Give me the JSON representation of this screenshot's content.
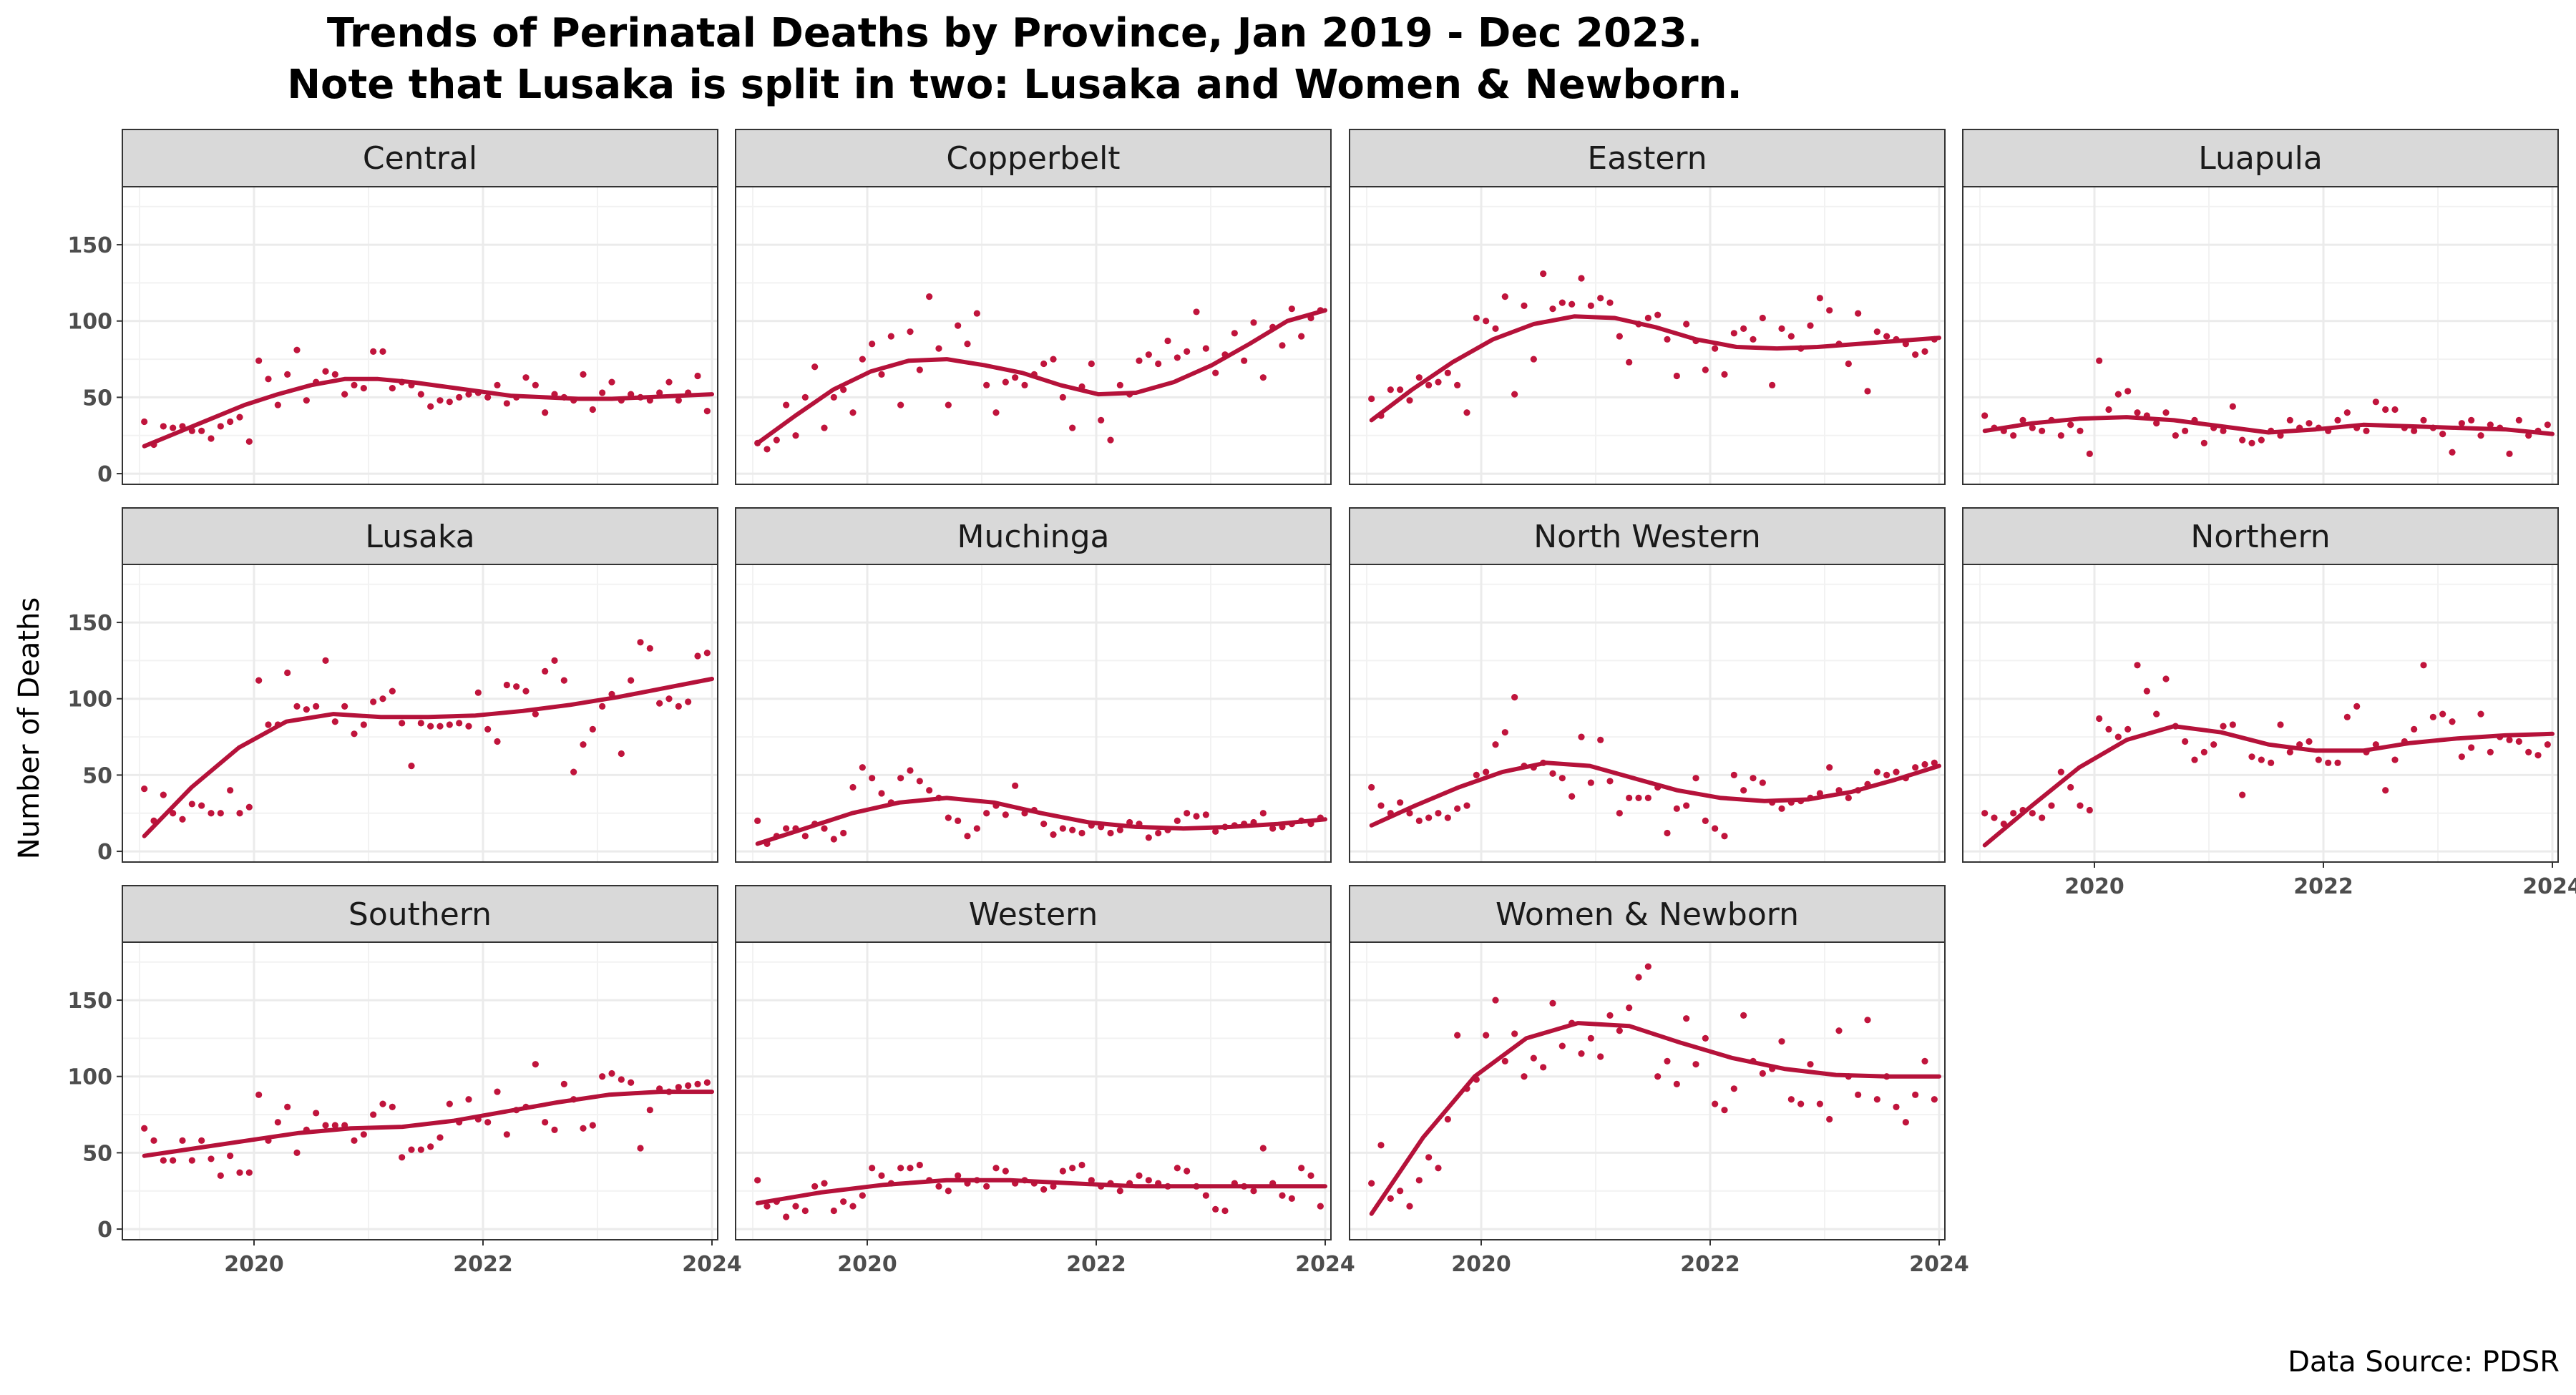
{
  "chart_data": {
    "type": "scatter",
    "title": "Trends of Perinatal Deaths by Province, Jan 2019 - Dec 2023.",
    "subtitle": "Note that Lusaka is split in two: Lusaka and Women & Newborn.",
    "ylabel": "Number of Deaths",
    "xlabel": "",
    "caption": "Data Source: PDSR",
    "xlim": [
      2018.85,
      2024.05
    ],
    "ylim": [
      -7,
      188
    ],
    "xticks": [
      2020,
      2022,
      2024
    ],
    "yticks": [
      0,
      50,
      100,
      150
    ],
    "grid": true,
    "colors": {
      "points": "#c0143c",
      "line": "#b5123a",
      "strip": "#d9d9d9",
      "grid": "#ebebeb"
    },
    "panels": [
      {
        "name": "Central",
        "values": [
          34,
          19,
          31,
          30,
          31,
          28,
          28,
          23,
          31,
          34,
          37,
          21,
          74,
          62,
          45,
          65,
          81,
          48,
          60,
          67,
          65,
          52,
          58,
          56,
          80,
          80,
          56,
          60,
          58,
          52,
          44,
          48,
          47,
          50,
          52,
          53,
          50,
          58,
          46,
          50,
          63,
          58,
          40,
          52,
          50,
          48,
          65,
          42,
          53,
          60,
          48,
          52,
          50,
          48,
          53,
          60,
          48,
          53,
          64,
          41
        ],
        "trend": [
          18,
          27,
          36,
          45,
          52,
          58,
          62,
          62,
          60,
          57,
          54,
          51,
          50,
          49,
          49,
          50,
          51,
          52
        ]
      },
      {
        "name": "Copperbelt",
        "values": [
          20,
          16,
          22,
          45,
          25,
          50,
          70,
          30,
          50,
          55,
          40,
          75,
          85,
          65,
          90,
          45,
          93,
          68,
          116,
          82,
          45,
          97,
          85,
          105,
          58,
          40,
          60,
          63,
          58,
          65,
          72,
          75,
          50,
          30,
          57,
          72,
          35,
          22,
          58,
          52,
          74,
          78,
          72,
          87,
          76,
          80,
          106,
          82,
          66,
          78,
          92,
          74,
          99,
          63,
          96,
          84,
          108,
          90,
          102,
          107
        ],
        "trend": [
          20,
          38,
          55,
          67,
          74,
          75,
          71,
          66,
          58,
          52,
          53,
          60,
          71,
          85,
          100,
          107
        ]
      },
      {
        "name": "Eastern",
        "values": [
          49,
          38,
          55,
          55,
          48,
          63,
          58,
          60,
          66,
          58,
          40,
          102,
          100,
          95,
          116,
          52,
          110,
          75,
          131,
          108,
          112,
          111,
          128,
          110,
          115,
          112,
          90,
          73,
          98,
          102,
          104,
          88,
          64,
          98,
          87,
          68,
          82,
          65,
          92,
          95,
          88,
          102,
          58,
          95,
          90,
          82,
          97,
          115,
          107,
          85,
          72,
          105,
          54,
          93,
          90,
          88,
          85,
          78,
          80,
          88
        ],
        "trend": [
          35,
          55,
          73,
          88,
          98,
          103,
          102,
          96,
          88,
          83,
          82,
          83,
          85,
          87,
          89
        ]
      },
      {
        "name": "Luapula",
        "values": [
          38,
          30,
          28,
          25,
          35,
          30,
          28,
          35,
          25,
          32,
          28,
          13,
          74,
          42,
          52,
          54,
          40,
          38,
          33,
          40,
          25,
          28,
          35,
          20,
          30,
          28,
          44,
          22,
          20,
          22,
          28,
          25,
          35,
          30,
          33,
          30,
          28,
          35,
          40,
          30,
          28,
          47,
          42,
          42,
          30,
          28,
          35,
          30,
          26,
          14,
          33,
          35,
          25,
          32,
          30,
          13,
          35,
          25,
          28,
          32
        ],
        "trend": [
          28,
          33,
          36,
          37,
          35,
          31,
          27,
          29,
          32,
          31,
          30,
          29,
          26
        ]
      },
      {
        "name": "Lusaka",
        "values": [
          41,
          20,
          37,
          25,
          21,
          31,
          30,
          25,
          25,
          40,
          25,
          29,
          112,
          83,
          83,
          117,
          95,
          93,
          95,
          125,
          85,
          95,
          77,
          83,
          98,
          100,
          105,
          84,
          56,
          84,
          82,
          82,
          83,
          84,
          82,
          104,
          80,
          72,
          109,
          108,
          105,
          90,
          118,
          125,
          112,
          52,
          70,
          80,
          95,
          103,
          64,
          112,
          137,
          133,
          97,
          100,
          95,
          98,
          128,
          130
        ],
        "trend": [
          10,
          42,
          68,
          85,
          90,
          88,
          88,
          89,
          92,
          96,
          101,
          107,
          113
        ]
      },
      {
        "name": "Muchinga",
        "values": [
          20,
          5,
          10,
          15,
          15,
          10,
          18,
          15,
          8,
          12,
          42,
          55,
          48,
          38,
          32,
          48,
          53,
          46,
          40,
          35,
          22,
          20,
          10,
          15,
          25,
          30,
          24,
          43,
          25,
          27,
          18,
          11,
          15,
          14,
          12,
          17,
          16,
          12,
          14,
          19,
          18,
          9,
          12,
          14,
          20,
          25,
          23,
          24,
          13,
          16,
          17,
          18,
          19,
          25,
          15,
          16,
          18,
          20,
          18,
          22
        ],
        "trend": [
          5,
          15,
          25,
          32,
          35,
          32,
          25,
          19,
          16,
          15,
          16,
          18,
          21
        ]
      },
      {
        "name": "North Western",
        "values": [
          42,
          30,
          25,
          32,
          25,
          20,
          22,
          25,
          22,
          28,
          30,
          50,
          52,
          70,
          78,
          101,
          56,
          55,
          58,
          51,
          48,
          36,
          75,
          45,
          73,
          46,
          25,
          35,
          35,
          35,
          42,
          12,
          28,
          30,
          48,
          20,
          15,
          10,
          50,
          40,
          48,
          45,
          32,
          28,
          32,
          33,
          35,
          38,
          55,
          40,
          35,
          40,
          44,
          52,
          50,
          52,
          48,
          55,
          57,
          58
        ],
        "trend": [
          17,
          30,
          42,
          52,
          58,
          56,
          48,
          40,
          35,
          33,
          34,
          39,
          47,
          56
        ]
      },
      {
        "name": "Northern",
        "values": [
          25,
          22,
          18,
          25,
          27,
          25,
          22,
          30,
          52,
          42,
          30,
          27,
          87,
          80,
          75,
          80,
          122,
          105,
          90,
          113,
          82,
          72,
          60,
          65,
          70,
          82,
          83,
          37,
          62,
          60,
          58,
          83,
          65,
          70,
          72,
          60,
          58,
          58,
          88,
          95,
          65,
          70,
          40,
          60,
          72,
          80,
          122,
          88,
          90,
          85,
          62,
          68,
          90,
          65,
          75,
          73,
          72,
          65,
          63,
          70
        ],
        "trend": [
          4,
          30,
          55,
          73,
          82,
          78,
          70,
          66,
          66,
          71,
          74,
          76,
          77
        ]
      },
      {
        "name": "Southern",
        "values": [
          66,
          58,
          45,
          45,
          58,
          45,
          58,
          46,
          35,
          48,
          37,
          37,
          88,
          58,
          70,
          80,
          50,
          65,
          76,
          68,
          68,
          68,
          58,
          62,
          75,
          82,
          80,
          47,
          52,
          52,
          54,
          60,
          82,
          70,
          85,
          72,
          70,
          90,
          62,
          78,
          80,
          108,
          70,
          65,
          95,
          85,
          66,
          68,
          100,
          102,
          98,
          96,
          53,
          78,
          92,
          90,
          93,
          94,
          95,
          96
        ],
        "trend": [
          48,
          53,
          58,
          63,
          66,
          67,
          71,
          77,
          83,
          88,
          90,
          90
        ]
      },
      {
        "name": "Western",
        "values": [
          32,
          15,
          18,
          8,
          15,
          12,
          28,
          30,
          12,
          18,
          15,
          22,
          40,
          35,
          30,
          40,
          40,
          42,
          32,
          28,
          25,
          35,
          30,
          32,
          28,
          40,
          38,
          30,
          32,
          30,
          26,
          28,
          38,
          40,
          42,
          32,
          28,
          30,
          25,
          30,
          35,
          32,
          30,
          28,
          40,
          38,
          28,
          22,
          13,
          12,
          30,
          28,
          25,
          53,
          30,
          22,
          20,
          40,
          35,
          15
        ],
        "trend": [
          17,
          24,
          29,
          32,
          32,
          30,
          28,
          28,
          28,
          28
        ]
      },
      {
        "name": "Women & Newborn",
        "values": [
          30,
          55,
          20,
          25,
          15,
          32,
          47,
          40,
          72,
          127,
          92,
          98,
          127,
          150,
          110,
          128,
          100,
          112,
          106,
          148,
          120,
          135,
          115,
          125,
          113,
          140,
          130,
          145,
          165,
          172,
          100,
          110,
          95,
          138,
          108,
          125,
          82,
          78,
          92,
          140,
          110,
          102,
          105,
          123,
          85,
          82,
          108,
          82,
          72,
          130,
          100,
          88,
          137,
          85,
          100,
          80,
          70,
          88,
          110,
          85
        ],
        "trend": [
          10,
          60,
          100,
          125,
          135,
          133,
          122,
          112,
          105,
          101,
          100,
          100
        ]
      }
    ]
  }
}
